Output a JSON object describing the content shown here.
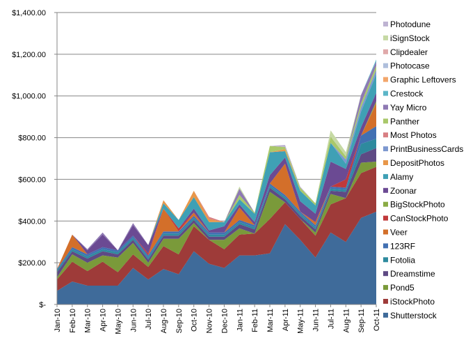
{
  "chart_data": {
    "type": "area",
    "stacked": true,
    "title": "",
    "xlabel": "",
    "ylabel": "",
    "ylim": [
      0,
      1400
    ],
    "y_ticks": [
      0,
      200,
      400,
      600,
      800,
      1000,
      1200,
      1400
    ],
    "y_tick_labels": [
      "$-",
      "$200.00",
      "$400.00",
      "$600.00",
      "$800.00",
      "$1,000.00",
      "$1,200.00",
      "$1,400.00"
    ],
    "grid": "horizontal",
    "legend_position": "right",
    "categories": [
      "Jan-10",
      "Feb-10",
      "Mar-10",
      "Apr-10",
      "May-10",
      "Jun-10",
      "Jul-10",
      "Aug-10",
      "Sep-10",
      "Oct-10",
      "Nov-10",
      "Dec-10",
      "Jan-11",
      "Feb-11",
      "Mar-11",
      "Apr-11",
      "May-11",
      "Jun-11",
      "Jul-11",
      "Aug-11",
      "Sep-11",
      "Oct-11"
    ],
    "series": [
      {
        "name": "Shutterstock",
        "color": "#3F6B9A",
        "values": [
          65,
          110,
          90,
          90,
          90,
          175,
          120,
          170,
          145,
          255,
          195,
          175,
          235,
          235,
          245,
          385,
          310,
          225,
          345,
          300,
          415,
          445
        ]
      },
      {
        "name": "iStockPhoto",
        "color": "#9E3B39",
        "values": [
          55,
          95,
          70,
          115,
          65,
          65,
          60,
          110,
          95,
          120,
          115,
          90,
          100,
          105,
          165,
          105,
          100,
          105,
          135,
          210,
          215,
          215
        ]
      },
      {
        "name": "Pond5",
        "color": "#7A9A3A",
        "values": [
          10,
          35,
          40,
          30,
          70,
          55,
          20,
          35,
          75,
          15,
          0,
          45,
          30,
          0,
          130,
          0,
          0,
          15,
          50,
          0,
          50,
          25
        ]
      },
      {
        "name": "Dreamstime",
        "color": "#5E4A84",
        "values": [
          25,
          15,
          20,
          20,
          15,
          15,
          15,
          15,
          15,
          15,
          15,
          15,
          20,
          20,
          20,
          15,
          15,
          15,
          15,
          30,
          40,
          65
        ]
      },
      {
        "name": "Fotolia",
        "color": "#2E8A9E",
        "values": [
          10,
          10,
          10,
          10,
          10,
          10,
          10,
          10,
          10,
          10,
          10,
          10,
          10,
          10,
          10,
          10,
          10,
          10,
          10,
          10,
          50,
          45
        ]
      },
      {
        "name": "123RF",
        "color": "#4270B2",
        "values": [
          5,
          10,
          10,
          10,
          10,
          10,
          10,
          10,
          10,
          10,
          10,
          10,
          10,
          10,
          10,
          10,
          10,
          10,
          10,
          10,
          40,
          60
        ]
      },
      {
        "name": "Veer",
        "color": "#D36F2A",
        "values": [
          0,
          60,
          0,
          0,
          0,
          0,
          0,
          110,
          0,
          15,
          0,
          0,
          60,
          0,
          0,
          150,
          0,
          15,
          0,
          0,
          0,
          110
        ]
      },
      {
        "name": "CanStockPhoto",
        "color": "#C0393B",
        "values": [
          0,
          0,
          0,
          0,
          0,
          0,
          10,
          0,
          15,
          0,
          0,
          0,
          0,
          0,
          0,
          0,
          0,
          0,
          0,
          40,
          0,
          0
        ]
      },
      {
        "name": "BigStockPhoto",
        "color": "#8AAB45",
        "values": [
          0,
          0,
          0,
          0,
          0,
          0,
          0,
          0,
          0,
          0,
          0,
          0,
          0,
          0,
          0,
          0,
          0,
          0,
          0,
          0,
          0,
          10
        ]
      },
      {
        "name": "Zoonar",
        "color": "#6B4A93",
        "values": [
          0,
          0,
          20,
          60,
          0,
          50,
          40,
          0,
          0,
          20,
          10,
          30,
          15,
          15,
          40,
          30,
          50,
          40,
          120,
          50,
          40,
          40
        ]
      },
      {
        "name": "Alamy",
        "color": "#3FA0B5",
        "values": [
          0,
          0,
          0,
          0,
          0,
          0,
          0,
          25,
          40,
          55,
          40,
          20,
          25,
          40,
          110,
          30,
          50,
          40,
          90,
          25,
          75,
          90
        ]
      },
      {
        "name": "DepositPhotos",
        "color": "#E8974A",
        "values": [
          0,
          0,
          0,
          0,
          0,
          0,
          0,
          15,
          0,
          30,
          15,
          0,
          0,
          0,
          0,
          10,
          0,
          0,
          0,
          0,
          0,
          0
        ]
      },
      {
        "name": "PrintBusinessCards",
        "color": "#7D98CF",
        "values": [
          0,
          0,
          0,
          0,
          0,
          0,
          0,
          0,
          0,
          0,
          0,
          0,
          0,
          0,
          0,
          0,
          0,
          0,
          0,
          20,
          20,
          20
        ]
      },
      {
        "name": "Most Photos",
        "color": "#D87F83",
        "values": [
          0,
          0,
          0,
          0,
          0,
          0,
          0,
          0,
          0,
          0,
          10,
          0,
          0,
          0,
          0,
          0,
          0,
          0,
          0,
          0,
          0,
          0
        ]
      },
      {
        "name": "Panther",
        "color": "#A9C86A",
        "values": [
          0,
          0,
          0,
          0,
          0,
          0,
          0,
          0,
          0,
          0,
          0,
          0,
          20,
          5,
          30,
          10,
          15,
          10,
          30,
          15,
          20,
          20
        ]
      },
      {
        "name": "Yay Micro",
        "color": "#8E79B3",
        "values": [
          0,
          0,
          5,
          10,
          0,
          10,
          0,
          0,
          0,
          0,
          0,
          0,
          30,
          0,
          0,
          0,
          0,
          0,
          0,
          0,
          40,
          20
        ]
      },
      {
        "name": "Crestock",
        "color": "#5CB6C8",
        "values": [
          0,
          0,
          0,
          0,
          0,
          0,
          0,
          0,
          0,
          0,
          0,
          0,
          0,
          0,
          0,
          0,
          0,
          0,
          0,
          0,
          0,
          10
        ]
      },
      {
        "name": "Graphic Leftovers",
        "color": "#F2A66B",
        "values": [
          0,
          0,
          0,
          0,
          0,
          0,
          0,
          0,
          0,
          0,
          0,
          0,
          0,
          0,
          0,
          0,
          0,
          0,
          0,
          0,
          0,
          0
        ]
      },
      {
        "name": "Photocase",
        "color": "#AFBFDC",
        "values": [
          0,
          0,
          0,
          0,
          0,
          0,
          0,
          0,
          0,
          0,
          0,
          0,
          0,
          0,
          0,
          0,
          0,
          0,
          0,
          0,
          0,
          0
        ]
      },
      {
        "name": "Clipdealer",
        "color": "#E0A9AA",
        "values": [
          0,
          0,
          0,
          0,
          0,
          0,
          0,
          0,
          0,
          0,
          0,
          0,
          0,
          0,
          0,
          0,
          0,
          0,
          0,
          0,
          0,
          0
        ]
      },
      {
        "name": "iSignStock",
        "color": "#C6D9A4",
        "values": [
          0,
          0,
          0,
          0,
          0,
          0,
          0,
          0,
          0,
          0,
          0,
          0,
          10,
          0,
          0,
          0,
          0,
          0,
          30,
          20,
          0,
          0
        ]
      },
      {
        "name": "Photodune",
        "color": "#BEB3D2",
        "values": [
          0,
          0,
          0,
          0,
          0,
          0,
          0,
          0,
          0,
          0,
          0,
          0,
          0,
          0,
          0,
          10,
          5,
          0,
          0,
          0,
          0,
          0
        ]
      }
    ]
  }
}
